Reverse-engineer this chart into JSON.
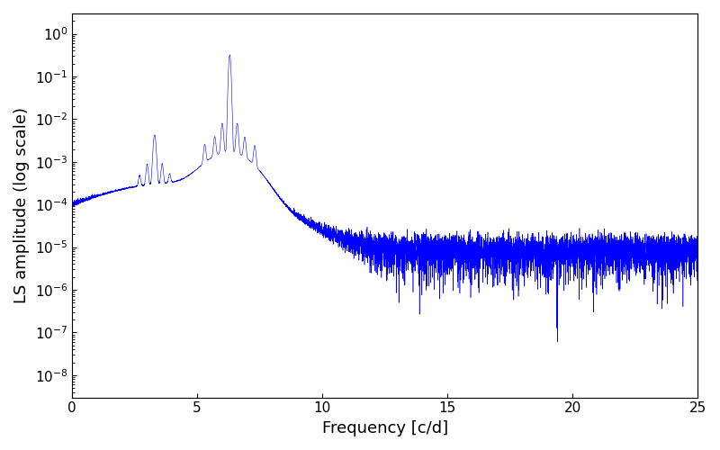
{
  "xlabel": "Frequency [c/d]",
  "ylabel": "LS amplitude (log scale)",
  "line_color": "#0000FF",
  "background_color": "#ffffff",
  "xlim": [
    0,
    25
  ],
  "ylim": [
    3e-09,
    3.0
  ],
  "freq_min": 0.05,
  "freq_max": 25.0,
  "n_points": 8000,
  "main_freq": 6.3,
  "main_amplitude": 0.32,
  "secondary_freq": 3.3,
  "secondary_amplitude": 0.004,
  "noise_floor": 1e-05,
  "seed": 17,
  "figsize": [
    8.0,
    5.0
  ],
  "dpi": 100
}
